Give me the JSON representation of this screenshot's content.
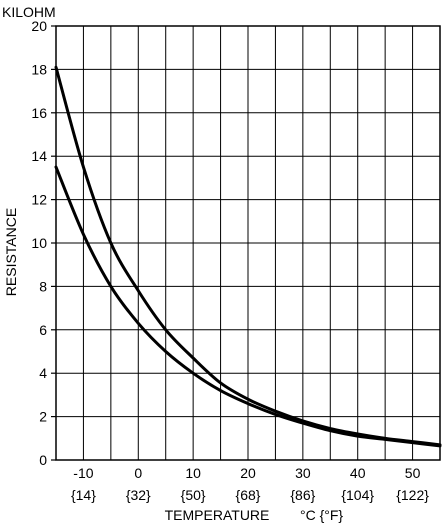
{
  "chart_data": {
    "type": "line",
    "title": "",
    "y_unit_label": "KILOHM",
    "ylabel": "RESISTANCE",
    "xlabel": "TEMPERATURE",
    "x_unit_label": "°C {°F}",
    "xlim": [
      -15,
      55
    ],
    "ylim": [
      0,
      20
    ],
    "grid": true,
    "x_ticks_c": [
      -10,
      0,
      10,
      20,
      30,
      40,
      50
    ],
    "x_tick_labels_c": [
      "-10",
      "0",
      "10",
      "20",
      "30",
      "40",
      "50"
    ],
    "x_tick_labels_f": [
      "{14}",
      "{32}",
      "{50}",
      "{68}",
      "{86}",
      "{104}",
      "{122}"
    ],
    "y_ticks": [
      0,
      2,
      4,
      6,
      8,
      10,
      12,
      14,
      16,
      18,
      20
    ],
    "y_tick_labels": [
      "0",
      "2",
      "4",
      "6",
      "8",
      "10",
      "12",
      "14",
      "16",
      "18",
      "20"
    ],
    "series": [
      {
        "x": [
          -15,
          -10,
          -5,
          0,
          5,
          10,
          15,
          20,
          25,
          30,
          35,
          40,
          45,
          50,
          55
        ],
        "y": [
          18.1,
          13.5,
          10.0,
          7.8,
          6.0,
          4.7,
          3.55,
          2.8,
          2.25,
          1.8,
          1.45,
          1.2,
          1.0,
          0.85,
          0.7
        ]
      },
      {
        "x": [
          -15,
          -10,
          -5,
          0,
          5,
          10,
          15,
          20,
          25,
          30,
          35,
          40,
          45,
          50,
          55
        ],
        "y": [
          13.5,
          10.4,
          8.0,
          6.3,
          5.0,
          4.0,
          3.2,
          2.6,
          2.1,
          1.7,
          1.35,
          1.1,
          0.95,
          0.8,
          0.65
        ]
      }
    ]
  }
}
